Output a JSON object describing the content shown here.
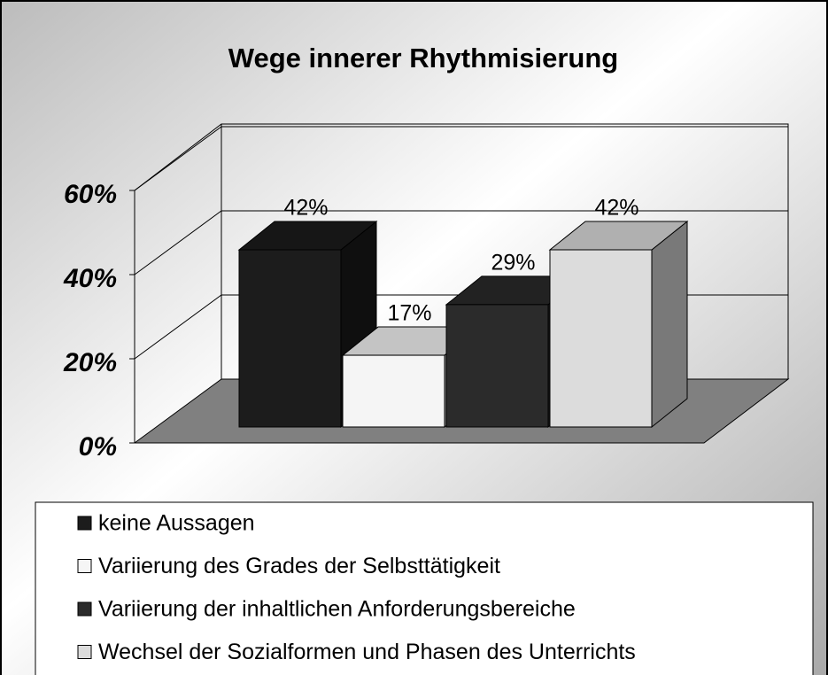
{
  "chart_data": {
    "type": "bar3d",
    "title": "Wege innerer Rhythmisierung",
    "series": [
      {
        "name": "keine Aussagen",
        "color": "#1c1c1c",
        "values": [
          42
        ],
        "value_labels": [
          "42%"
        ]
      },
      {
        "name": "Variierung des Grades der Selbsttätigkeit",
        "color": "#f5f5f5",
        "values": [
          17
        ],
        "value_labels": [
          "17%"
        ]
      },
      {
        "name": "Variierung der inhaltlichen Anforderungsbereiche",
        "color": "#2b2b2b",
        "values": [
          29
        ],
        "value_labels": [
          "29%"
        ]
      },
      {
        "name": "Wechsel der Sozialformen und Phasen des Unterrichts",
        "color": "#dcdcdc",
        "values": [
          42
        ],
        "value_labels": [
          "42%"
        ]
      }
    ],
    "ylim": [
      0,
      60
    ],
    "yticks": [
      {
        "value": 0,
        "label": "0%"
      },
      {
        "value": 20,
        "label": "20%"
      },
      {
        "value": 40,
        "label": "40%"
      },
      {
        "value": 60,
        "label": "60%"
      }
    ],
    "grid": true
  }
}
